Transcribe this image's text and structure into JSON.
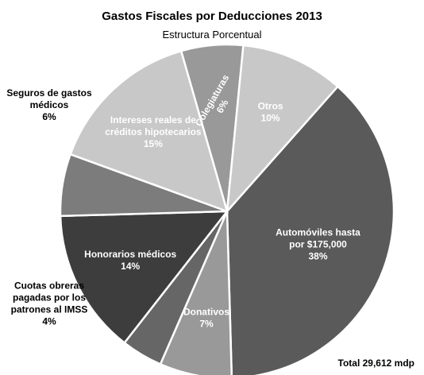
{
  "chart_data": {
    "type": "pie",
    "title": "Gastos Fiscales por Deducciones 2013",
    "subtitle": "Estructura Porcentual",
    "total_note": "Total 29,612 mdp",
    "slices": [
      {
        "label": [
          "Colegiaturas",
          "6%"
        ],
        "value": 6,
        "color": "#999999",
        "text_color": "#ffffff",
        "label_pos": "inside",
        "rotate": -60
      },
      {
        "label": [
          "Otros",
          "10%"
        ],
        "value": 10,
        "color": "#c8c8c8",
        "text_color": "#ffffff",
        "label_pos": "inside"
      },
      {
        "label": [
          "Automóviles hasta",
          "por $175,000",
          "38%"
        ],
        "value": 38,
        "color": "#5a5a5a",
        "text_color": "#ffffff",
        "label_pos": "inside"
      },
      {
        "label": [
          "Donativos",
          "7%"
        ],
        "value": 7,
        "color": "#999999",
        "text_color": "#ffffff",
        "label_pos": "inside"
      },
      {
        "label": [
          "Cuotas obreras",
          "pagadas por los",
          "patrones al IMSS",
          "4%"
        ],
        "value": 4,
        "color": "#666666",
        "text_color": "#000000",
        "label_pos": "outside"
      },
      {
        "label": [
          "Honorarios médicos",
          "14%"
        ],
        "value": 14,
        "color": "#3d3d3d",
        "text_color": "#ffffff",
        "label_pos": "inside"
      },
      {
        "label": [
          "Seguros de gastos",
          "médicos",
          "6%"
        ],
        "value": 6,
        "color": "#7c7c7c",
        "text_color": "#000000",
        "label_pos": "outside"
      },
      {
        "label": [
          "Intereses reales de",
          "créditos hipotecarios",
          "15%"
        ],
        "value": 15,
        "color": "#c8c8c8",
        "text_color": "#ffffff",
        "label_pos": "inside"
      }
    ]
  }
}
